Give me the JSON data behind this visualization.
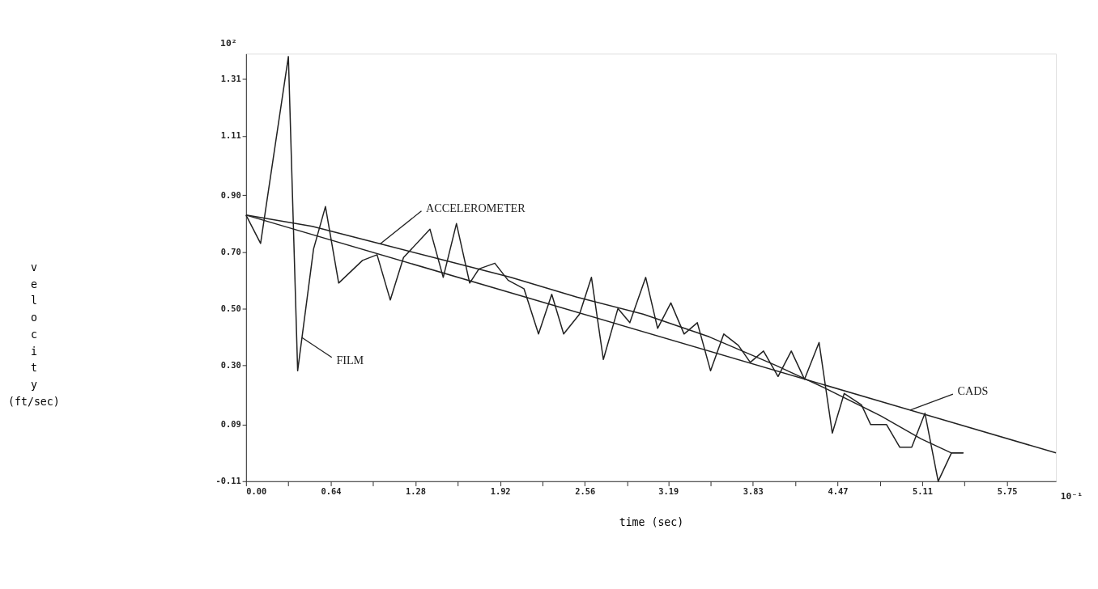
{
  "chart_data": {
    "type": "line",
    "xlabel": "time (sec)",
    "ylabel": "velocity (ft/sec)",
    "xlim": [
      0,
      6.12
    ],
    "ylim": [
      -0.11,
      1.4
    ],
    "xticks": [
      {
        "value": 0,
        "label": "0.00"
      },
      {
        "value": 0.32,
        "label": null
      },
      {
        "value": 0.64,
        "label": "0.64"
      },
      {
        "value": 0.96,
        "label": null
      },
      {
        "value": 1.28,
        "label": "1.28"
      },
      {
        "value": 1.6,
        "label": null
      },
      {
        "value": 1.92,
        "label": "1.92"
      },
      {
        "value": 2.24,
        "label": null
      },
      {
        "value": 2.56,
        "label": "2.56"
      },
      {
        "value": 2.88,
        "label": null
      },
      {
        "value": 3.19,
        "label": "3.19"
      },
      {
        "value": 3.51,
        "label": null
      },
      {
        "value": 3.83,
        "label": "3.83"
      },
      {
        "value": 4.15,
        "label": null
      },
      {
        "value": 4.47,
        "label": "4.47"
      },
      {
        "value": 4.79,
        "label": null
      },
      {
        "value": 5.11,
        "label": "5.11"
      },
      {
        "value": 5.43,
        "label": null
      },
      {
        "value": 5.75,
        "label": "5.75"
      }
    ],
    "yticks": [
      -0.11,
      0.09,
      {
        "value": 0.3,
        "label": "0.30"
      },
      {
        "value": 0.5,
        "label": "0.50"
      },
      {
        "value": 0.7,
        "label": "0.70"
      },
      {
        "value": 0.9,
        "label": "0.90"
      },
      1.11,
      1.31
    ],
    "grid": false,
    "legend": false,
    "marker": "none",
    "line_style": "solid",
    "annotations": [
      "10²",
      "10⁻¹"
    ],
    "series": [
      {
        "name": "ACCELEROMETER",
        "color": "#222222",
        "x": [
          0,
          0.5,
          1.0,
          1.5,
          2.0,
          2.5,
          3.0,
          3.5,
          4.0,
          4.37,
          4.8,
          5.1,
          5.33,
          5.42
        ],
        "values": [
          0.83,
          0.79,
          0.73,
          0.67,
          0.61,
          0.54,
          0.48,
          0.4,
          0.3,
          0.22,
          0.12,
          0.04,
          -0.01,
          -0.01
        ]
      },
      {
        "name": "FILM",
        "color": "#222222",
        "x": [
          0,
          0.11,
          0.32,
          0.39,
          0.51,
          0.6,
          0.7,
          0.88,
          0.99,
          1.09,
          1.19,
          1.39,
          1.49,
          1.59,
          1.69,
          1.76,
          1.88,
          1.98,
          2.1,
          2.21,
          2.31,
          2.4,
          2.52,
          2.61,
          2.7,
          2.81,
          2.9,
          3.02,
          3.11,
          3.21,
          3.31,
          3.41,
          3.51,
          3.61,
          3.72,
          3.81,
          3.91,
          4.02,
          4.12,
          4.22,
          4.33,
          4.43,
          4.52,
          4.65,
          4.72,
          4.84,
          4.94,
          5.03,
          5.13,
          5.23,
          5.33,
          5.42
        ],
        "values": [
          0.83,
          0.73,
          1.39,
          0.28,
          0.71,
          0.86,
          0.59,
          0.67,
          0.69,
          0.53,
          0.68,
          0.78,
          0.61,
          0.8,
          0.59,
          0.64,
          0.66,
          0.6,
          0.57,
          0.41,
          0.55,
          0.41,
          0.48,
          0.61,
          0.32,
          0.5,
          0.45,
          0.61,
          0.43,
          0.52,
          0.41,
          0.45,
          0.28,
          0.41,
          0.37,
          0.31,
          0.35,
          0.26,
          0.35,
          0.25,
          0.38,
          0.06,
          0.2,
          0.16,
          0.09,
          0.09,
          0.01,
          0.01,
          0.13,
          -0.11,
          -0.01,
          -0.01
        ]
      },
      {
        "name": "CADS",
        "color": "#222222",
        "x": [
          0,
          6.12
        ],
        "values": [
          0.83,
          -0.01
        ]
      }
    ]
  }
}
